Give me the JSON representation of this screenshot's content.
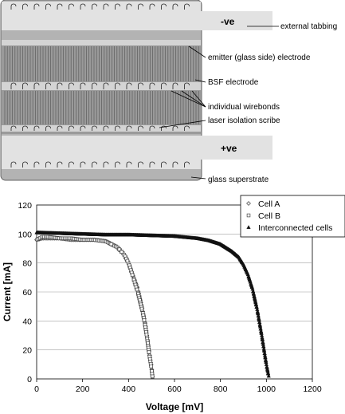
{
  "schematic": {
    "labels": {
      "neg": "-ve",
      "pos": "+ve",
      "external_tabbing": "external tabbing",
      "emitter": "emitter (glass side) electrode",
      "bsf": "BSF electrode",
      "wirebonds": "individual wirebonds",
      "scribe": "laser isolation scribe",
      "superstrate": "glass superstrate"
    },
    "colors": {
      "tab": "#e2e2e2",
      "cell": "#9a9a9a",
      "cell_line": "#5c5c5c",
      "electrode": "#d4d4d4",
      "glass": "#b3b3b3"
    }
  },
  "chart_data": {
    "type": "scatter",
    "xlabel": "Voltage [mV]",
    "ylabel": "Current [mA]",
    "xlim": [
      0,
      1200
    ],
    "ylim": [
      0,
      120
    ],
    "xticks": [
      0,
      200,
      400,
      600,
      800,
      1000,
      1200
    ],
    "yticks": [
      0,
      20,
      40,
      60,
      80,
      100,
      120
    ],
    "grid": "horizontal",
    "legend_position": "top-right",
    "series": [
      {
        "name": "Cell A",
        "marker": "diamond",
        "x": [
          0,
          25,
          50,
          100,
          150,
          200,
          250,
          300,
          350,
          380,
          400,
          420,
          440,
          460,
          470,
          480,
          490,
          500,
          505
        ],
        "y": [
          96,
          97,
          97,
          97,
          96,
          96,
          96,
          95,
          91,
          86,
          80,
          71,
          62,
          48,
          40,
          30,
          18,
          8,
          0
        ]
      },
      {
        "name": "Cell B",
        "marker": "square",
        "x": [
          0,
          25,
          50,
          100,
          150,
          200,
          250,
          300,
          350,
          380,
          400,
          420,
          440,
          460,
          470,
          480,
          490,
          500,
          505
        ],
        "y": [
          96,
          98,
          98,
          97,
          97,
          96,
          96,
          95,
          91,
          86,
          80,
          70,
          60,
          47,
          39,
          29,
          17,
          7,
          0
        ]
      },
      {
        "name": "Interconnected cells",
        "marker": "triangle",
        "x": [
          0,
          100,
          200,
          300,
          400,
          500,
          600,
          700,
          750,
          800,
          850,
          880,
          900,
          920,
          940,
          960,
          980,
          1000,
          1010
        ],
        "y": [
          101,
          100.5,
          100,
          99.5,
          99.5,
          99,
          98.5,
          97,
          95.5,
          93,
          88,
          84,
          79,
          72,
          62,
          48,
          30,
          10,
          2
        ]
      }
    ]
  }
}
